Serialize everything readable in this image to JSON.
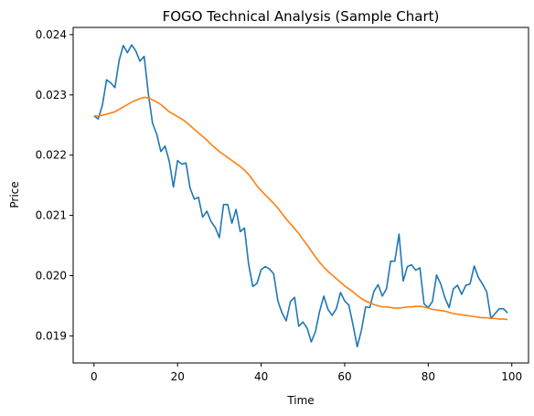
{
  "chart_data": {
    "type": "line",
    "title": "FOGO Technical Analysis (Sample Chart)",
    "xlabel": "Time",
    "ylabel": "Price",
    "xlim": [
      -5,
      104
    ],
    "ylim": [
      0.01855,
      0.02412
    ],
    "xticks": [
      0,
      20,
      40,
      60,
      80,
      100
    ],
    "xtick_labels": [
      "0",
      "20",
      "40",
      "60",
      "80",
      "100"
    ],
    "yticks": [
      0.019,
      0.02,
      0.021,
      0.022,
      0.023,
      0.024
    ],
    "ytick_labels": [
      "0.019",
      "0.020",
      "0.021",
      "0.022",
      "0.023",
      "0.024"
    ],
    "grid": false,
    "series": [
      {
        "color": "#1f77b4",
        "x": [
          0,
          1,
          2,
          3,
          4,
          5,
          6,
          7,
          8,
          9,
          10,
          11,
          12,
          13,
          14,
          15,
          16,
          17,
          18,
          19,
          20,
          21,
          22,
          23,
          24,
          25,
          26,
          27,
          28,
          29,
          30,
          31,
          32,
          33,
          34,
          35,
          36,
          37,
          38,
          39,
          40,
          41,
          42,
          43,
          44,
          45,
          46,
          47,
          48,
          49,
          50,
          51,
          52,
          53,
          54,
          55,
          56,
          57,
          58,
          59,
          60,
          61,
          62,
          63,
          64,
          65,
          66,
          67,
          68,
          69,
          70,
          71,
          72,
          73,
          74,
          75,
          76,
          77,
          78,
          79,
          80,
          81,
          82,
          83,
          84,
          85,
          86,
          87,
          88,
          89,
          90,
          91,
          92,
          93,
          94,
          95,
          96,
          97,
          98,
          99
        ],
        "y": [
          0.02265,
          0.0226,
          0.02283,
          0.02325,
          0.0232,
          0.02312,
          0.02357,
          0.02382,
          0.0237,
          0.02383,
          0.02373,
          0.02356,
          0.02364,
          0.02302,
          0.02253,
          0.02235,
          0.02206,
          0.02215,
          0.0219,
          0.02147,
          0.02191,
          0.02185,
          0.02187,
          0.02145,
          0.02127,
          0.0213,
          0.02097,
          0.02107,
          0.0209,
          0.0208,
          0.02063,
          0.02118,
          0.02118,
          0.02087,
          0.0211,
          0.02073,
          0.02079,
          0.02019,
          0.01982,
          0.01987,
          0.0201,
          0.02015,
          0.02011,
          0.02003,
          0.01958,
          0.01938,
          0.01925,
          0.01957,
          0.01964,
          0.01916,
          0.01923,
          0.01913,
          0.0189,
          0.01907,
          0.01941,
          0.01966,
          0.01944,
          0.01934,
          0.01945,
          0.01972,
          0.01958,
          0.01951,
          0.01918,
          0.01882,
          0.01909,
          0.01948,
          0.01947,
          0.01974,
          0.01985,
          0.01966,
          0.01978,
          0.02024,
          0.02024,
          0.02069,
          0.01991,
          0.02015,
          0.02018,
          0.02009,
          0.02013,
          0.01953,
          0.01947,
          0.01957,
          0.02001,
          0.01986,
          0.01963,
          0.01947,
          0.01978,
          0.01984,
          0.01969,
          0.01984,
          0.01986,
          0.02016,
          0.01997,
          0.01986,
          0.01973,
          0.01929,
          0.01937,
          0.01945,
          0.01945,
          0.01938
        ]
      },
      {
        "color": "#ff7f0e",
        "x": [
          0,
          1,
          2,
          3,
          4,
          5,
          6,
          7,
          8,
          9,
          10,
          11,
          12,
          13,
          14,
          15,
          16,
          17,
          18,
          19,
          20,
          21,
          22,
          23,
          24,
          25,
          26,
          27,
          28,
          29,
          30,
          31,
          32,
          33,
          34,
          35,
          36,
          37,
          38,
          39,
          40,
          41,
          42,
          43,
          44,
          45,
          46,
          47,
          48,
          49,
          50,
          51,
          52,
          53,
          54,
          55,
          56,
          57,
          58,
          59,
          60,
          61,
          62,
          63,
          64,
          65,
          66,
          67,
          68,
          69,
          70,
          71,
          72,
          73,
          74,
          75,
          76,
          77,
          78,
          79,
          80,
          81,
          82,
          83,
          84,
          85,
          86,
          87,
          88,
          89,
          90,
          91,
          92,
          93,
          94,
          95,
          96,
          97,
          98,
          99
        ],
        "y": [
          0.02265,
          0.02265,
          0.02266,
          0.02268,
          0.0227,
          0.02272,
          0.02276,
          0.0228,
          0.02284,
          0.02288,
          0.02291,
          0.02294,
          0.02296,
          0.02295,
          0.02292,
          0.02288,
          0.02284,
          0.02278,
          0.02272,
          0.02268,
          0.02264,
          0.0226,
          0.02255,
          0.02249,
          0.02243,
          0.02237,
          0.02231,
          0.02225,
          0.02218,
          0.02212,
          0.02206,
          0.02201,
          0.02196,
          0.02191,
          0.02186,
          0.02181,
          0.02175,
          0.02168,
          0.02159,
          0.02149,
          0.02141,
          0.02134,
          0.02127,
          0.0212,
          0.02112,
          0.02103,
          0.02094,
          0.02086,
          0.02078,
          0.0207,
          0.0206,
          0.02051,
          0.02041,
          0.02031,
          0.02022,
          0.02014,
          0.02007,
          0.02001,
          0.01995,
          0.01989,
          0.01983,
          0.01978,
          0.01973,
          0.01967,
          0.01962,
          0.01958,
          0.01955,
          0.01952,
          0.0195,
          0.01948,
          0.01948,
          0.01947,
          0.01946,
          0.01946,
          0.01947,
          0.01948,
          0.01948,
          0.01949,
          0.01949,
          0.01948,
          0.01946,
          0.01944,
          0.01943,
          0.01942,
          0.01941,
          0.01939,
          0.01937,
          0.01936,
          0.01935,
          0.01934,
          0.01933,
          0.01932,
          0.01931,
          0.0193,
          0.0193,
          0.01929,
          0.01929,
          0.01928,
          0.01928,
          0.01927
        ]
      }
    ]
  }
}
